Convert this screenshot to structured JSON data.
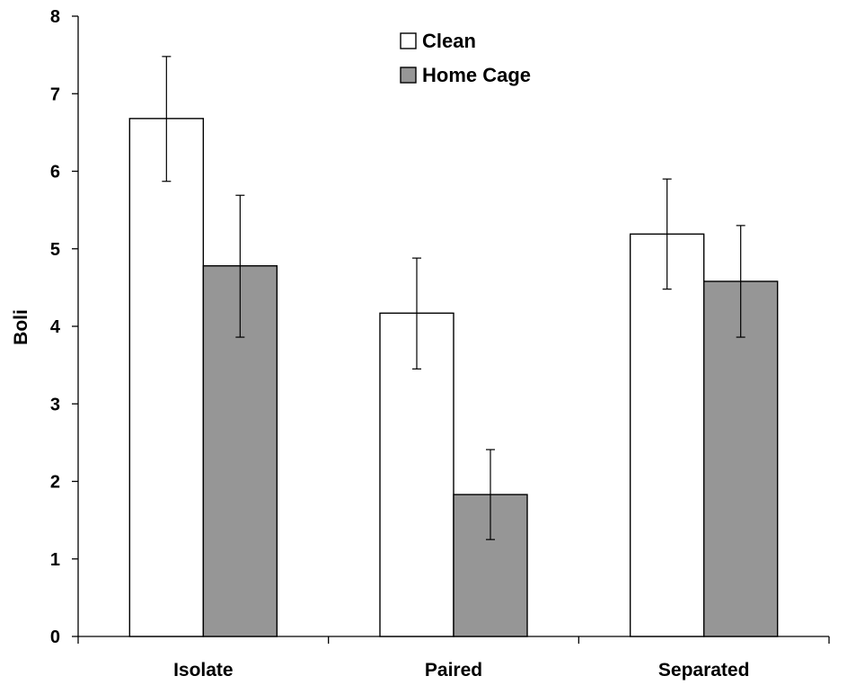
{
  "chart_data": {
    "type": "bar",
    "title": "",
    "xlabel": "",
    "ylabel": "Boli",
    "ylim": [
      0,
      8
    ],
    "yticks": [
      0,
      1,
      2,
      3,
      4,
      5,
      6,
      7,
      8
    ],
    "categories": [
      "Isolate",
      "Paired",
      "Separated"
    ],
    "series": [
      {
        "name": "Clean",
        "color": "#ffffff",
        "values": [
          6.68,
          4.17,
          5.19
        ],
        "err_low": [
          5.87,
          3.45,
          4.48
        ],
        "err_high": [
          7.48,
          4.88,
          5.9
        ]
      },
      {
        "name": "Home Cage",
        "color": "#969696",
        "values": [
          4.78,
          1.83,
          4.58
        ],
        "err_low": [
          3.86,
          1.25,
          3.86
        ],
        "err_high": [
          5.69,
          2.41,
          5.3
        ]
      }
    ],
    "grid": false,
    "legend": "top-center"
  }
}
